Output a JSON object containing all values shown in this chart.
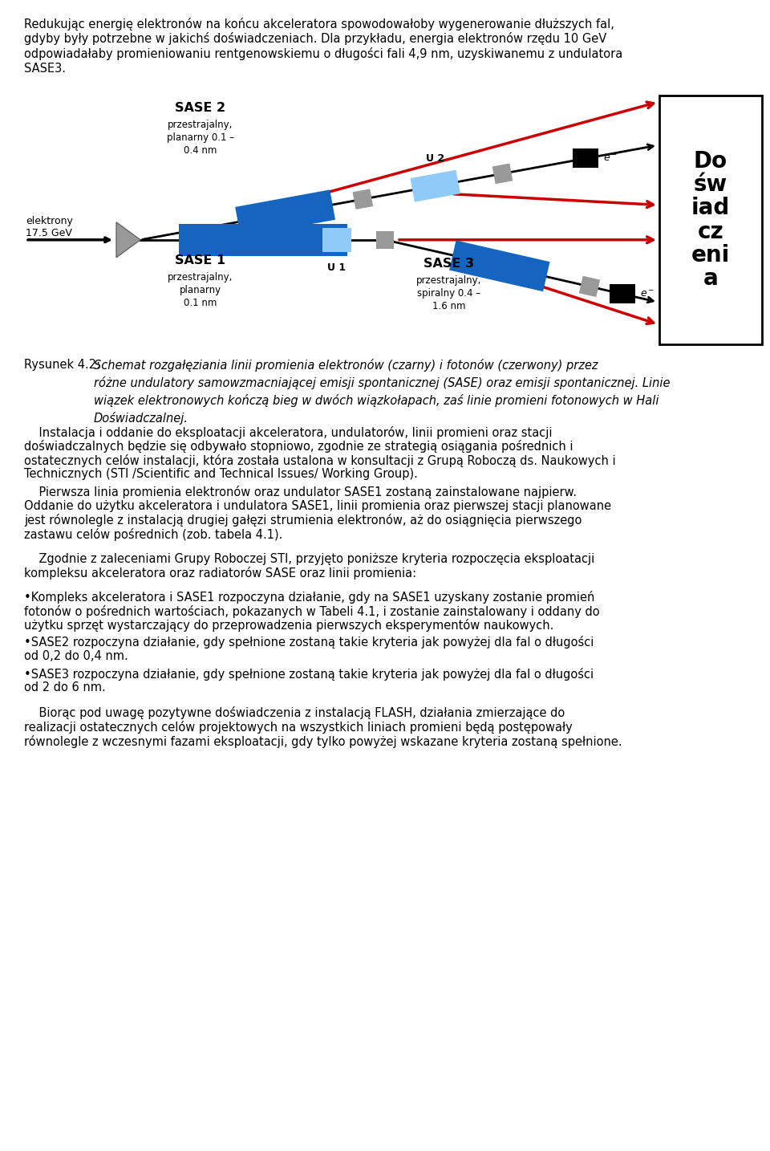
{
  "page_width": 9.6,
  "page_height": 14.34,
  "dpi": 100,
  "bg_color": "#ffffff",
  "top_text_lines": [
    "Redukując energię elektronów na końcu akceleratora spowodowałoby wygenerowanie dłuższych fal,",
    "gdyby były potrzebne w jakichś doświadczeniach. Dla przykładu, energia elektronów rzędu 10 GeV",
    "odpowiadałaby promieniowaniu rentgenowskiemu o długości fali 4,9 nm, uzyskiwanemu z undulatora",
    "SASE3."
  ],
  "right_box_text": "Do\nśw\niad\ncz\neni\na",
  "caption_prefix": "Rysunek 4.2: ",
  "caption_body": "Schemat rozgałęziania linii promienia elektronów (czarny) i fotonów (czerwony) przez różne undulatory samowzmacniającej emisji spontanicznej (SASE) oraz emisji spontanicznej. Linie wiązek elektronowych kończą bieg w dwóch wiązkołapach, zaś linie promieni fotonowych w Hali Doświadczalnej.",
  "para1": "Instalacja i oddanie do eksploatacji akceleratora, undulatorów, linii promieni oraz stacji doświadczalnych będzie się odbywało stopniowo, zgodnie ze strategią osiągania pośrednich i ostatecznych celów instalacji, która została ustalona w konsultacji z Grupą Roboczą ds. Naukowych i Technicznych (STI /Scientific and Technical Issues/ Working Group).",
  "para2": "Pierwsza linia promienia elektronów oraz undulator SASE1 zostaną zainstalowane najpierw. Oddanie do użytku akceleratora i undulatora SASE1, linii promienia oraz pierwszej stacji planowane jest równolegle z instalacją drugiej gałęzi strumienia elektronów, aż do osiągnięcia pierwszego zastawu celów pośrednich (zob. tabela 4.1).",
  "para3": "Zgodnie z zaleceniami Grupy Roboczej STI, przyjęto poniższe kryteria rozpoczęcia eksploatacji kompleksu akceleratora oraz radiatorów SASE oraz linii promienia:",
  "bullet1": "•Kompleks akceleratora i SASE1 rozpoczyna działanie, gdy na SASE1 uzyskany zostanie promień fotonów o pośrednich wartościach, pokazanych w Tabeli 4.1, i zostanie zainstalowany i oddany do użytku sprzęt wystarczający do przeprowadzenia pierwszych eksperymentów naukowych.",
  "bullet2": "•SASE2 rozpoczyna działanie, gdy spełnione zostaną takie kryteria jak powyżej dla fal o długości od 0,2 do 0,4 nm.",
  "bullet3": "•SASE3 rozpoczyna działanie, gdy spełnione zostaną takie kryteria jak powyżej dla fal o długości od 2 do 6 nm.",
  "para4": "Biorąc pod uwagę pozytywne doświadczenia z instalacją FLASH, działania zmierzające do realizacji ostatecznych celów projektowych na wszystkich liniach promieni będą postępowały równolegle z wczesnymi fazami eksploatacji, gdy tylko powyżej wskazane kryteria zostaną spełnione."
}
